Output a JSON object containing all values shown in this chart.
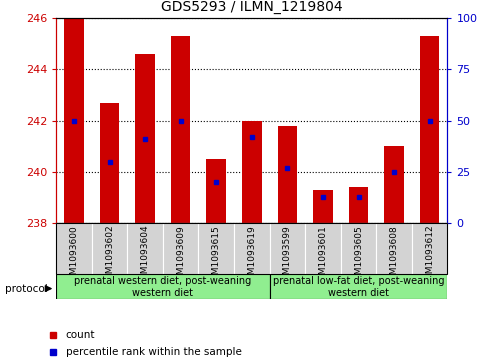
{
  "title": "GDS5293 / ILMN_1219804",
  "samples": [
    "GSM1093600",
    "GSM1093602",
    "GSM1093604",
    "GSM1093609",
    "GSM1093615",
    "GSM1093619",
    "GSM1093599",
    "GSM1093601",
    "GSM1093605",
    "GSM1093608",
    "GSM1093612"
  ],
  "count_values": [
    246.0,
    242.7,
    244.6,
    245.3,
    240.5,
    242.0,
    241.8,
    239.3,
    239.4,
    241.0,
    245.3
  ],
  "percentile_values": [
    50,
    30,
    41,
    50,
    20,
    42,
    27,
    13,
    13,
    25,
    50
  ],
  "baseline": 238.0,
  "ylim_left": [
    238,
    246
  ],
  "ylim_right": [
    0,
    100
  ],
  "yticks_left": [
    238,
    240,
    242,
    244,
    246
  ],
  "yticks_right": [
    0,
    25,
    50,
    75,
    100
  ],
  "bar_color": "#cc0000",
  "percentile_color": "#0000cc",
  "left_axis_color": "#cc0000",
  "right_axis_color": "#0000cc",
  "group1_label": "prenatal western diet, post-weaning\nwestern diet",
  "group2_label": "prenatal low-fat diet, post-weaning\nwestern diet",
  "group1_indices": [
    0,
    1,
    2,
    3,
    4,
    5
  ],
  "group2_indices": [
    6,
    7,
    8,
    9,
    10
  ],
  "protocol_label": "protocol",
  "legend_count": "count",
  "legend_percentile": "percentile rank within the sample",
  "bar_width": 0.55,
  "title_fontsize": 10,
  "sample_fontsize": 6.5,
  "group_fontsize": 7.0,
  "legend_fontsize": 7.5,
  "tick_fontsize": 8,
  "xlabel_color": "#000000",
  "sample_box_color": "#d3d3d3",
  "group1_box_color": "#90EE90",
  "group2_box_color": "#90EE90"
}
